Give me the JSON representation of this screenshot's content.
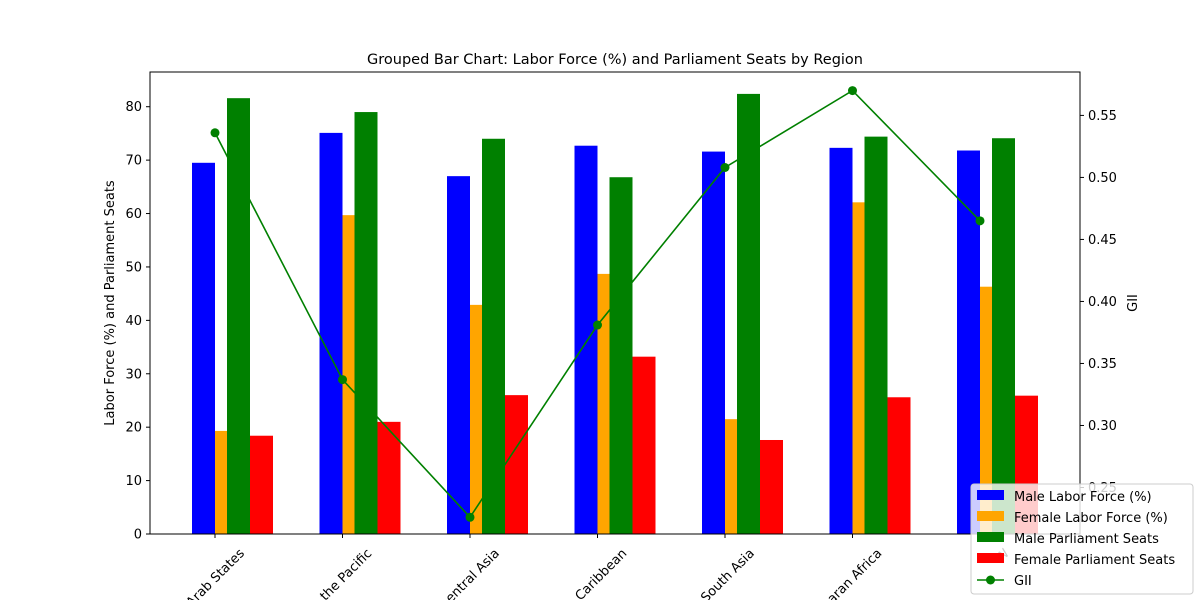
{
  "chart_data": {
    "type": "bar",
    "title": "Grouped Bar Chart: Labor Force (%) and Parliament Seats by Region",
    "ylabel": "Labor Force (%) and Parliament Seats",
    "y2label": "GII",
    "ylim": [
      0,
      86.5
    ],
    "y2lim": [
      0.2125,
      0.585
    ],
    "yticks": [
      0,
      10,
      20,
      30,
      40,
      50,
      60,
      70,
      80
    ],
    "y2ticks": [
      "0.25",
      "0.30",
      "0.35",
      "0.40",
      "0.45",
      "0.50",
      "0.55"
    ],
    "categories": [
      "Arab States",
      "East Asia and the Pacific",
      "Europe and Central Asia",
      "Latin America and the Caribbean",
      "South Asia",
      "Sub-Saharan Africa",
      "World"
    ],
    "category_labels_visible": [
      "Arab States",
      "the Pacific",
      "entral Asia",
      "Caribbean",
      "South Asia",
      "aran Africa",
      "W"
    ],
    "series": [
      {
        "name": "Male Labor Force (%)",
        "color": "#0000ff",
        "axis": "left",
        "kind": "bar",
        "values": [
          69.5,
          75.1,
          67.0,
          72.7,
          71.6,
          72.3,
          71.8
        ]
      },
      {
        "name": "Female Labor Force (%)",
        "color": "#ffa500",
        "axis": "left",
        "kind": "bar",
        "values": [
          19.3,
          59.7,
          42.9,
          48.7,
          21.5,
          62.1,
          46.3
        ]
      },
      {
        "name": "Male Parliament Seats",
        "color": "#008000",
        "axis": "left",
        "kind": "bar",
        "values": [
          81.6,
          79.0,
          74.0,
          66.8,
          82.4,
          74.4,
          74.1
        ]
      },
      {
        "name": "Female Parliament Seats",
        "color": "#ff0000",
        "axis": "left",
        "kind": "bar",
        "values": [
          18.4,
          21.0,
          26.0,
          33.2,
          17.6,
          25.6,
          25.9
        ]
      },
      {
        "name": "GII",
        "color": "#008000",
        "axis": "right",
        "kind": "line",
        "values": [
          0.536,
          0.337,
          0.226,
          0.381,
          0.508,
          0.57,
          0.465
        ]
      }
    ],
    "legend": "lower-right",
    "grid": false
  }
}
